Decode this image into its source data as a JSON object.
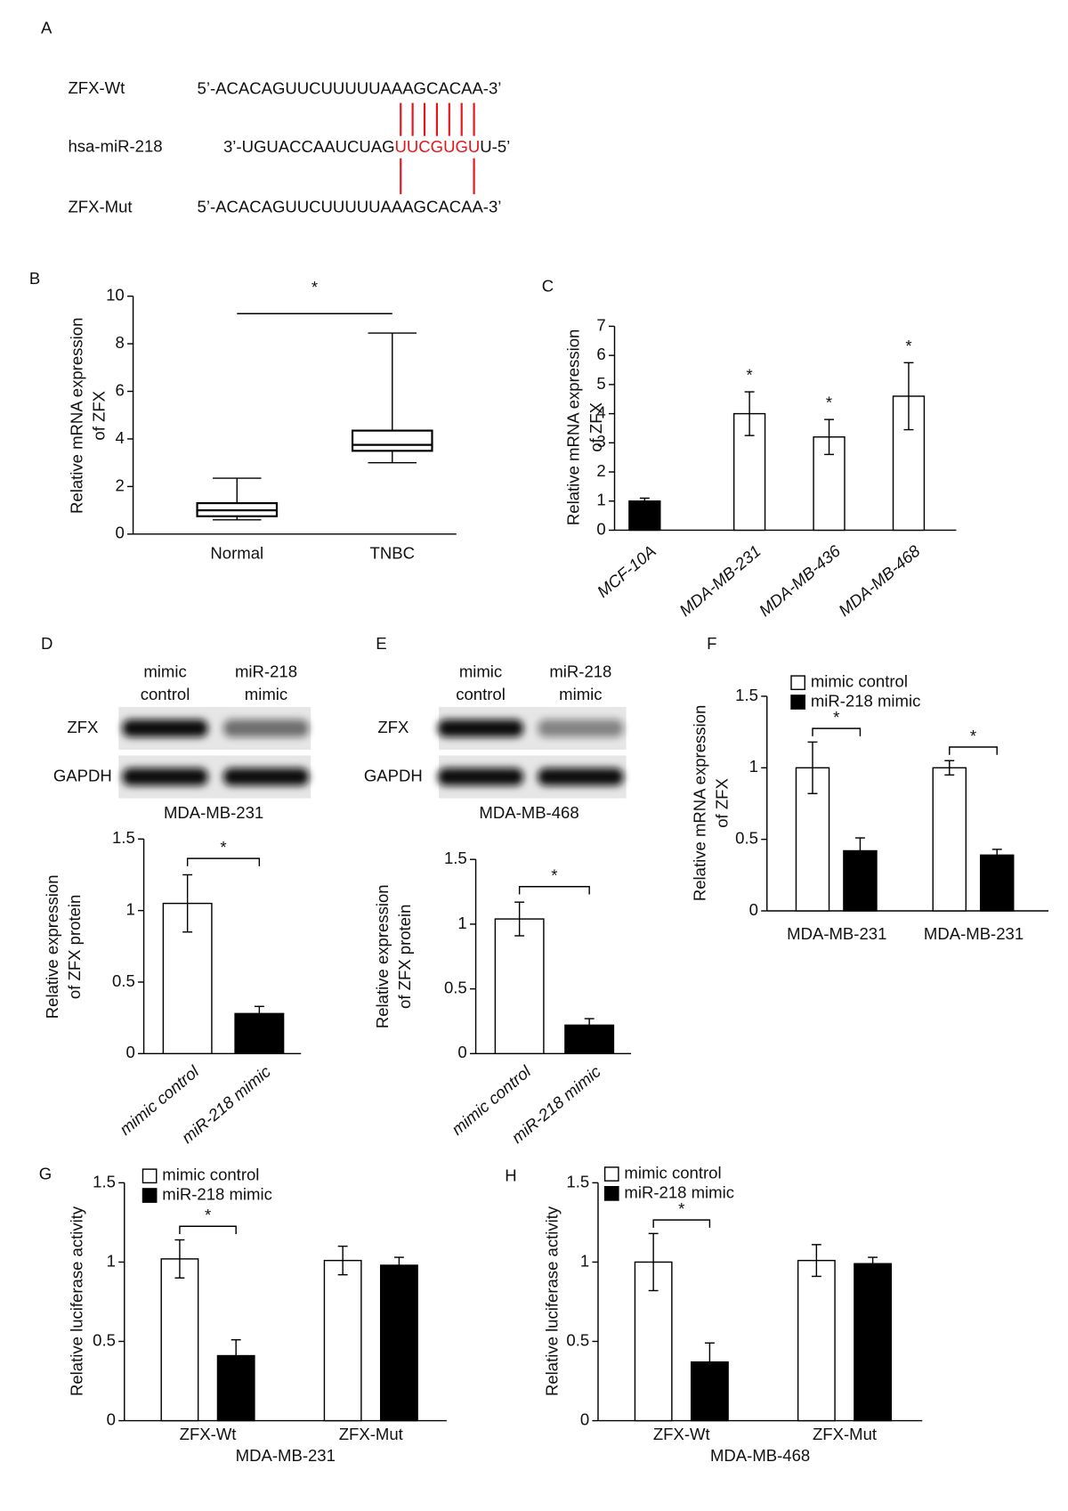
{
  "sequence": {
    "label": "A",
    "rows": [
      {
        "name": "ZFX-Wt",
        "parts": [
          {
            "text": "5’-ACACAGUUCUUUUUAAAGCACAA-3’"
          }
        ]
      },
      {
        "name": "hsa-miR-218",
        "parts": [
          {
            "text": "3’-UGUACCAAUCUAG"
          },
          {
            "text": "UUCGUGU",
            "color": "#e8141c"
          },
          {
            "text": "U-5’"
          }
        ]
      },
      {
        "name": "ZFX-Mut",
        "parts": [
          {
            "text": "5’-ACACAGUUCUUUUUAAAGCACAA-3’"
          }
        ]
      }
    ]
  },
  "chart_data": [
    {
      "label": "B",
      "type": "box",
      "categories": [
        "Normal",
        "TNBC"
      ],
      "min": [
        0.6,
        3.0
      ],
      "q1": [
        0.75,
        3.5
      ],
      "median": [
        1.0,
        3.75
      ],
      "q3": [
        1.3,
        4.35
      ],
      "max": [
        2.35,
        8.45
      ],
      "significance": "*",
      "ylim": [
        0,
        10
      ],
      "yticks": [
        0,
        2,
        4,
        6,
        8,
        10
      ],
      "ylabel": [
        "Relative mRNA expression",
        "of ZFX"
      ]
    },
    {
      "label": "C",
      "type": "bar",
      "categories": [
        "MCF-10A",
        "MDA-MB-231",
        "MDA-MB-436",
        "MDA-MB-468"
      ],
      "values": [
        1,
        4,
        3.2,
        4.6
      ],
      "errors": [
        0.1,
        0.75,
        0.6,
        1.15
      ],
      "colors": [
        "#000000",
        "#ffffff",
        "#ffffff",
        "#ffffff"
      ],
      "significance": [
        null,
        "*",
        "*",
        "*"
      ],
      "ylim": [
        0,
        7
      ],
      "yticks": [
        0,
        1,
        2,
        3,
        4,
        5,
        6,
        7
      ],
      "ylabel": [
        "Relative mRNA expression",
        "of ZFX"
      ]
    },
    {
      "label": "D",
      "type": "bar",
      "blot": {
        "columns": [
          [
            "mimic",
            "control"
          ],
          [
            "miR-218",
            "mimic"
          ]
        ],
        "rows": [
          "ZFX",
          "GAPDH"
        ],
        "cell_line": "MDA-MB-231"
      },
      "categories": [
        "mimic control",
        "miR-218 mimic"
      ],
      "values": [
        1.05,
        0.28
      ],
      "errors": [
        0.2,
        0.05
      ],
      "colors": [
        "#ffffff",
        "#000000"
      ],
      "significance": "*",
      "ylim": [
        0,
        1.5
      ],
      "yticks": [
        0,
        0.5,
        1,
        1.5
      ],
      "ylabel": [
        "Relative expression",
        "of ZFX protein"
      ]
    },
    {
      "label": "E",
      "type": "bar",
      "blot": {
        "columns": [
          [
            "mimic",
            "control"
          ],
          [
            "miR-218",
            "mimic"
          ]
        ],
        "rows": [
          "ZFX",
          "GAPDH"
        ],
        "cell_line": "MDA-MB-468"
      },
      "categories": [
        "mimic control",
        "miR-218 mimic"
      ],
      "values": [
        1.04,
        0.22
      ],
      "errors": [
        0.13,
        0.05
      ],
      "colors": [
        "#ffffff",
        "#000000"
      ],
      "significance": "*",
      "ylim": [
        0,
        1.5
      ],
      "yticks": [
        0,
        0.5,
        1,
        1.5
      ],
      "ylabel": [
        "Relative expression",
        "of ZFX protein"
      ]
    },
    {
      "label": "F",
      "type": "grouped_bar",
      "categories": [
        "MDA-MB-231",
        "MDA-MB-231"
      ],
      "series": [
        {
          "name": "mimic control",
          "color": "#ffffff",
          "values": [
            1,
            1
          ],
          "errors": [
            0.18,
            0.05
          ]
        },
        {
          "name": "miR-218 mimic",
          "color": "#000000",
          "values": [
            0.42,
            0.39
          ],
          "errors": [
            0.09,
            0.04
          ]
        }
      ],
      "significance": [
        "*",
        "*"
      ],
      "ylim": [
        0,
        1.5
      ],
      "yticks": [
        0,
        0.5,
        1,
        1.5
      ],
      "ylabel": [
        "Relative mRNA expression",
        "of ZFX"
      ]
    },
    {
      "label": "G",
      "type": "grouped_bar",
      "categories": [
        "ZFX-Wt",
        "ZFX-Mut"
      ],
      "xlabel": "MDA-MB-231",
      "series": [
        {
          "name": "mimic control",
          "color": "#ffffff",
          "values": [
            1.02,
            1.01
          ],
          "errors": [
            0.12,
            0.09
          ]
        },
        {
          "name": "miR-218 mimic",
          "color": "#000000",
          "values": [
            0.41,
            0.98
          ],
          "errors": [
            0.1,
            0.05
          ]
        }
      ],
      "significance": [
        "*",
        null
      ],
      "ylim": [
        0,
        1.5
      ],
      "yticks": [
        0,
        0.5,
        1,
        1.5
      ],
      "ylabel": [
        "Relative luciferase activity"
      ]
    },
    {
      "label": "H",
      "type": "grouped_bar",
      "categories": [
        "ZFX-Wt",
        "ZFX-Mut"
      ],
      "xlabel": "MDA-MB-468",
      "series": [
        {
          "name": "mimic control",
          "color": "#ffffff",
          "values": [
            1.0,
            1.01
          ],
          "errors": [
            0.18,
            0.1
          ]
        },
        {
          "name": "miR-218 mimic",
          "color": "#000000",
          "values": [
            0.37,
            0.99
          ],
          "errors": [
            0.12,
            0.04
          ]
        }
      ],
      "significance": [
        "*",
        null
      ],
      "ylim": [
        0,
        1.5
      ],
      "yticks": [
        0,
        0.5,
        1,
        1.5
      ],
      "ylabel": [
        "Relative luciferase activity"
      ]
    }
  ]
}
